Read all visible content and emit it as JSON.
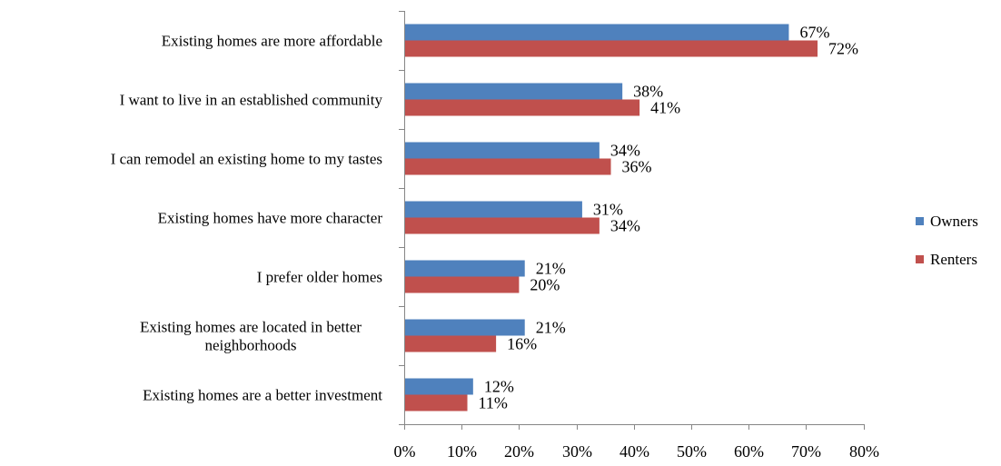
{
  "chart_data": {
    "type": "bar",
    "orientation": "horizontal",
    "title": "",
    "xlabel": "",
    "ylabel": "",
    "categories": [
      "Existing homes are more affordable",
      "I want to live in an established community",
      "I can remodel an existing home to my tastes",
      "Existing homes have more character",
      "I prefer older homes",
      "Existing homes are located in better neighborhoods",
      "Existing homes are a better investment"
    ],
    "category_label_lines": [
      [
        "Existing homes are more affordable"
      ],
      [
        "I want to live in an established community"
      ],
      [
        "I can remodel an existing home to my tastes"
      ],
      [
        "Existing homes have more character"
      ],
      [
        "I prefer older homes"
      ],
      [
        "Existing homes are located in better",
        "neighborhoods"
      ],
      [
        "Existing homes are a better investment"
      ]
    ],
    "series": [
      {
        "name": "Owners",
        "color": "#4F81BD",
        "values": [
          67,
          38,
          34,
          31,
          21,
          21,
          12
        ],
        "labels": [
          "67%",
          "38%",
          "34%",
          "31%",
          "21%",
          "21%",
          "12%"
        ]
      },
      {
        "name": "Renters",
        "color": "#C0504D",
        "values": [
          72,
          41,
          36,
          34,
          20,
          16,
          11
        ],
        "labels": [
          "72%",
          "41%",
          "36%",
          "34%",
          "20%",
          "16%",
          "11%"
        ]
      }
    ],
    "xlim": [
      0,
      80
    ],
    "x_ticks": [
      0,
      10,
      20,
      30,
      40,
      50,
      60,
      70,
      80
    ],
    "x_tick_labels": [
      "0%",
      "10%",
      "20%",
      "30%",
      "40%",
      "50%",
      "60%",
      "70%",
      "80%"
    ],
    "grid": false,
    "legend_position": "right"
  }
}
